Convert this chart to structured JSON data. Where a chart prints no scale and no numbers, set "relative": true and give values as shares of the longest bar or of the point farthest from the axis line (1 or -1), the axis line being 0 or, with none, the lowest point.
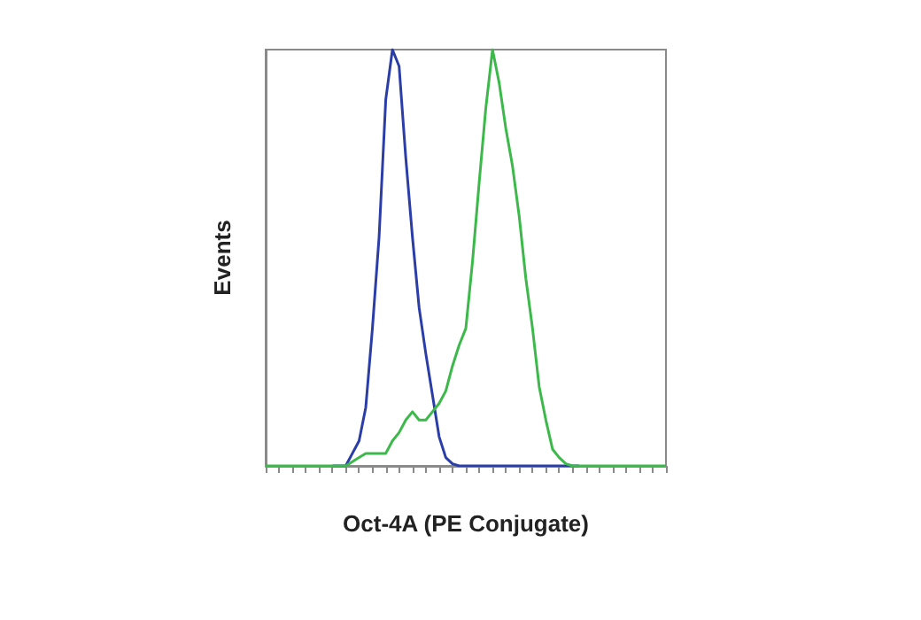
{
  "chart_data": {
    "type": "line",
    "relative": true,
    "xlabel": "Oct-4A (PE Conjugate)",
    "ylabel": "Events",
    "grid": false,
    "marker": "none",
    "line_style": "solid",
    "categories": [
      null,
      null,
      null,
      null,
      null,
      null,
      null,
      null,
      null,
      null,
      null,
      null,
      null,
      null,
      null,
      null,
      null,
      null,
      null,
      null,
      null,
      null,
      null,
      null,
      null,
      null,
      null,
      null,
      null,
      null,
      null,
      null,
      null,
      null,
      null,
      null,
      null,
      null,
      null,
      null,
      null,
      null,
      null,
      null,
      null,
      null,
      null,
      null,
      null,
      null,
      null,
      null,
      null,
      null,
      null,
      null,
      null,
      null,
      null,
      null,
      null
    ],
    "series": [
      {
        "color": "#2b3ea8",
        "values": [
          null,
          null,
          null,
          null,
          null,
          null,
          null,
          null,
          null,
          null,
          0,
          0,
          0,
          0.03,
          0.06,
          0.14,
          0.33,
          0.55,
          0.88,
          1,
          0.96,
          0.74,
          0.55,
          0.38,
          0.27,
          0.17,
          0.07,
          0.02,
          0.005,
          0,
          0,
          0,
          0,
          0,
          0,
          0,
          0,
          0,
          0,
          0,
          0,
          0,
          0,
          0,
          0,
          0,
          0,
          0,
          null,
          null,
          null,
          null,
          null,
          null,
          null,
          null,
          null,
          null,
          null,
          null,
          null
        ]
      },
      {
        "color": "#3cb94a",
        "values": [
          0,
          0,
          0,
          0,
          0,
          0,
          0,
          0,
          0,
          0,
          0,
          0,
          0,
          0.01,
          0.02,
          0.03,
          0.03,
          0.03,
          0.03,
          0.06,
          0.08,
          0.11,
          0.13,
          0.11,
          0.11,
          0.13,
          0.15,
          0.18,
          0.24,
          0.29,
          0.33,
          0.49,
          0.68,
          0.86,
          1,
          0.92,
          0.81,
          0.72,
          0.6,
          0.45,
          0.33,
          0.19,
          0.11,
          0.04,
          0.02,
          0.005,
          0,
          0,
          0,
          0,
          0,
          0,
          0,
          0,
          0,
          0,
          0,
          0,
          0,
          0,
          0
        ]
      }
    ]
  }
}
